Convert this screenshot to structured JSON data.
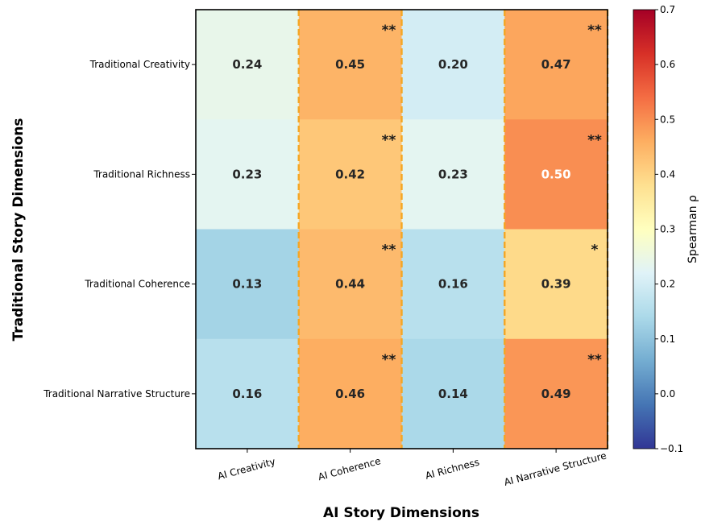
{
  "chart_data": {
    "type": "heatmap",
    "title": "",
    "xlabel": "AI Story Dimensions",
    "ylabel": "Traditional Story Dimensions",
    "x_categories": [
      "AI Creativity",
      "AI Coherence",
      "AI Richness",
      "AI Narrative Structure"
    ],
    "y_categories": [
      "Traditional Creativity",
      "Traditional Richness",
      "Traditional Coherence",
      "Traditional Narrative Structure"
    ],
    "values": [
      [
        0.24,
        0.45,
        0.2,
        0.47
      ],
      [
        0.23,
        0.42,
        0.23,
        0.5
      ],
      [
        0.13,
        0.44,
        0.16,
        0.39
      ],
      [
        0.16,
        0.46,
        0.14,
        0.49
      ]
    ],
    "value_labels": [
      [
        "0.24",
        "0.45",
        "0.20",
        "0.47"
      ],
      [
        "0.23",
        "0.42",
        "0.23",
        "0.50"
      ],
      [
        "0.13",
        "0.44",
        "0.16",
        "0.39"
      ],
      [
        "0.16",
        "0.46",
        "0.14",
        "0.49"
      ]
    ],
    "significance": [
      [
        "",
        "**",
        "",
        "**"
      ],
      [
        "",
        "**",
        "",
        "**"
      ],
      [
        "",
        "**",
        "",
        "*"
      ],
      [
        "",
        "**",
        "",
        "**"
      ]
    ],
    "highlighted_columns": [
      "AI Coherence",
      "AI Narrative Structure"
    ],
    "highlight_color": "#f5a623",
    "colormap": "RdYlBu_r",
    "colorbar": {
      "label": "Spearman ρ",
      "range": [
        -0.1,
        0.7
      ],
      "ticks": [
        -0.1,
        0.0,
        0.1,
        0.2,
        0.3,
        0.4,
        0.5,
        0.6,
        0.7
      ],
      "tick_labels": [
        "−0.1",
        "0.0",
        "0.1",
        "0.2",
        "0.3",
        "0.4",
        "0.5",
        "0.6",
        "0.7"
      ]
    }
  }
}
